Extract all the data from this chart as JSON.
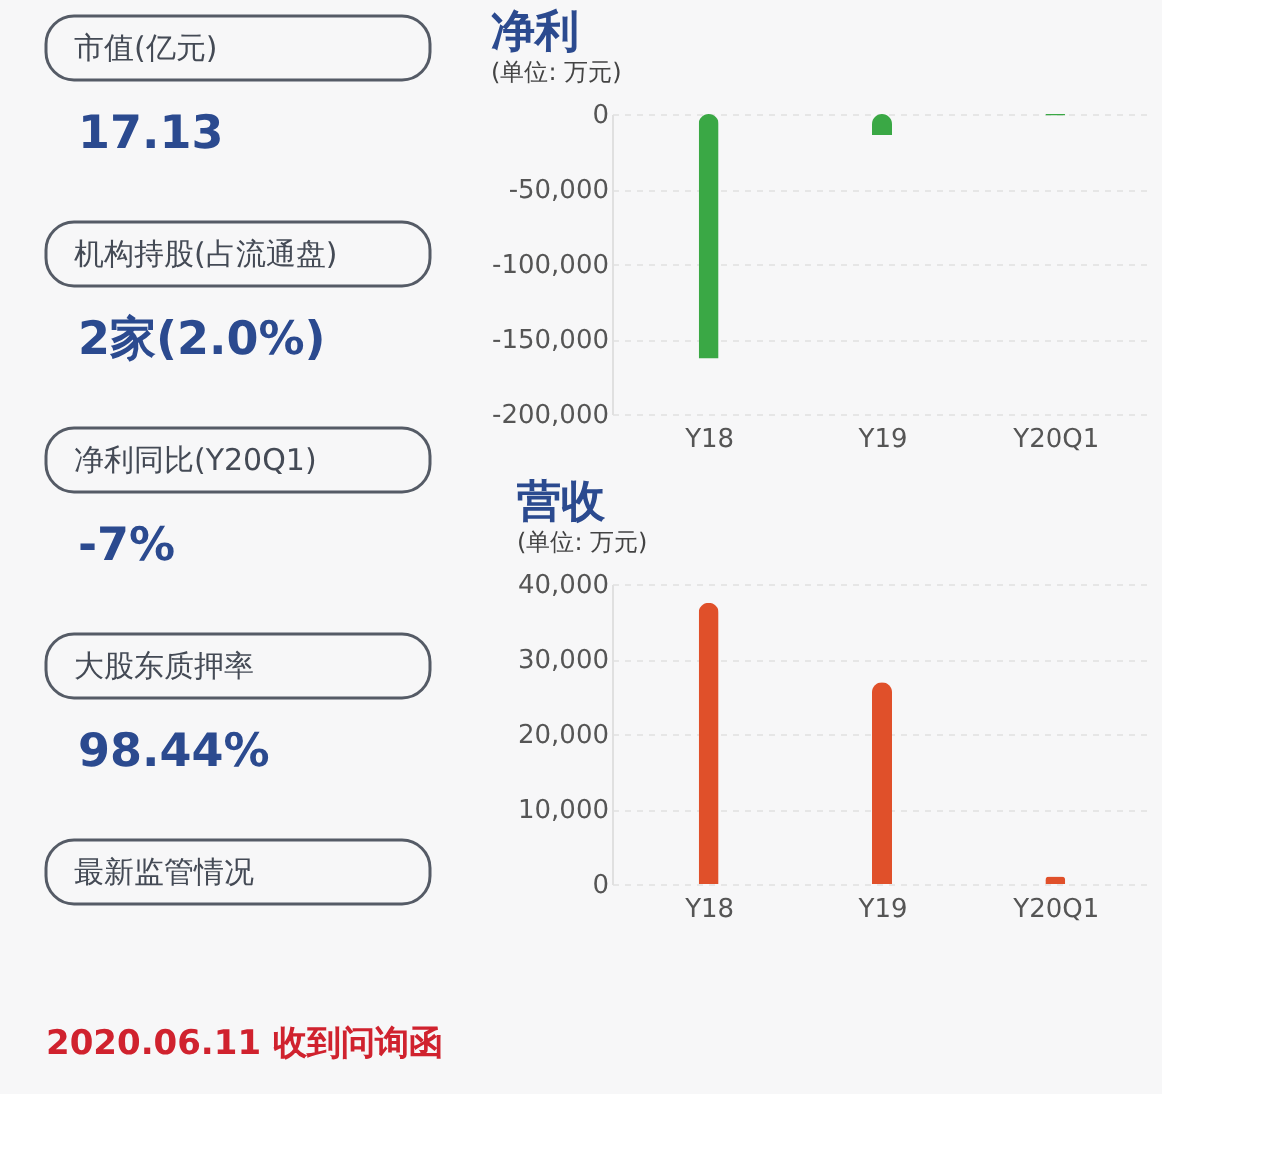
{
  "chart_data": [
    {
      "type": "other",
      "annotations": [
        "市值(亿元)",
        "17.13",
        "机构持股(占流通盘)",
        "2家(2.0%)",
        "净利同比(Y20Q1)",
        "-7%",
        "大股东质押率",
        "98.44%",
        "最新监管情况",
        "2020.06.11 收到问询函"
      ]
    },
    {
      "type": "bar",
      "title": "净利",
      "subtitle": "(单位: 万元)",
      "categories": [
        "Y18",
        "Y19",
        "Y20Q1"
      ],
      "values": [
        -163000,
        -14000,
        -1000
      ],
      "color": "#3aa845",
      "ylim": [
        -200000,
        0
      ],
      "yticks": [
        0,
        {
          "value": -50000,
          "label": "-50,000"
        },
        {
          "value": -100000,
          "label": "-100,000"
        },
        {
          "value": -150000,
          "label": "-150,000"
        },
        {
          "value": -200000,
          "label": "-200,000"
        }
      ],
      "grid": "y"
    },
    {
      "type": "bar",
      "title": "营收",
      "subtitle": "(单位: 万元)",
      "categories": [
        "Y18",
        "Y19",
        "Y20Q1"
      ],
      "values": [
        37500,
        26900,
        1000
      ],
      "color": "#e0502a",
      "ylim": [
        0,
        40000
      ],
      "yticks": [
        0,
        {
          "value": 10000,
          "label": "10,000"
        },
        {
          "value": 20000,
          "label": "20,000"
        },
        {
          "value": 30000,
          "label": "30,000"
        },
        {
          "value": 40000,
          "label": "40,000"
        }
      ],
      "grid": "y"
    }
  ]
}
